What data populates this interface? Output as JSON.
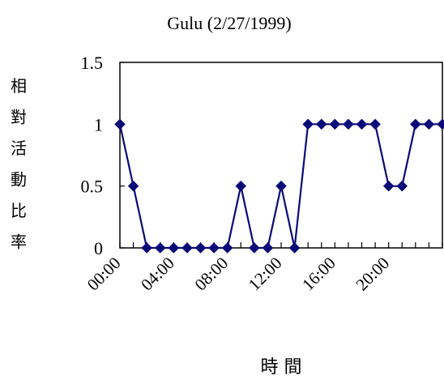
{
  "chart_data": {
    "type": "line",
    "title": "Gulu (2/27/1999)",
    "ylabel": "相對活動比率",
    "xlabel": "時 間",
    "ylim": [
      0,
      1.5
    ],
    "yticks": [
      "0",
      "0.5",
      "1",
      "1.5"
    ],
    "xtick_labels": [
      "00:00",
      "04:00",
      "08:00",
      "12:00",
      "16:00",
      "20:00"
    ],
    "x_step_hours": 1,
    "colors": {
      "line": "#0a0a78",
      "marker": "#0a0a78",
      "axis": "#000000"
    },
    "marker": "diamond",
    "grid": false,
    "legend": "none",
    "series": [
      {
        "x": [
          "00:00",
          "01:00",
          "02:00",
          "03:00",
          "04:00",
          "05:00",
          "06:00",
          "07:00",
          "08:00",
          "09:00",
          "10:00",
          "11:00",
          "12:00",
          "13:00",
          "14:00",
          "15:00",
          "16:00",
          "17:00",
          "18:00",
          "19:00",
          "20:00",
          "21:00",
          "22:00",
          "23:00",
          "24:00"
        ],
        "values": [
          1,
          0.5,
          0,
          0,
          0,
          0,
          0,
          0,
          0,
          0.5,
          0,
          0,
          0.5,
          0,
          1,
          1,
          1,
          1,
          1,
          1,
          0.5,
          0.5,
          1,
          1,
          1
        ]
      }
    ]
  }
}
